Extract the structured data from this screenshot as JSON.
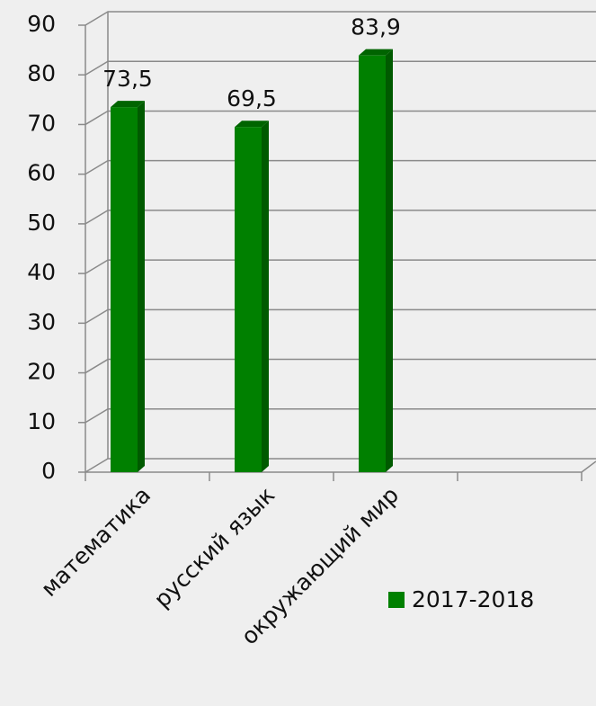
{
  "chart_data": {
    "type": "bar",
    "categories": [
      "математика",
      "русский язык",
      "окружающий мир",
      null
    ],
    "series": [
      {
        "name": "2017-2018",
        "color": "#008000",
        "values": [
          73.5,
          69.5,
          83.9,
          null
        ],
        "value_labels": [
          "73,5",
          "69,5",
          "83,9",
          null
        ]
      }
    ],
    "ylim": [
      0,
      90
    ],
    "yticks": [
      0,
      10,
      20,
      30,
      40,
      50,
      60,
      70,
      80,
      90
    ],
    "grid": true,
    "legend": "right"
  }
}
